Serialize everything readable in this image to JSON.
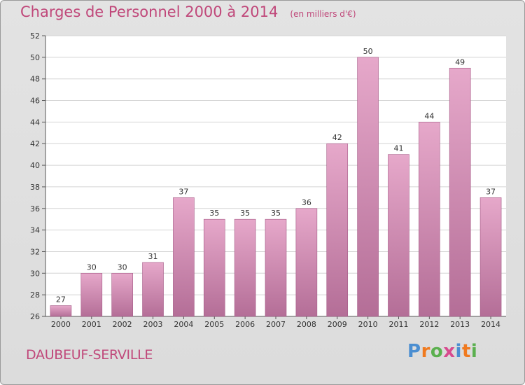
{
  "header": {
    "title": "Charges de Personnel 2000 à 2014",
    "subtitle": "(en milliers d'€)"
  },
  "footer": {
    "commune": "DAUBEUF-SERVILLE",
    "logo_text": "Proxiti"
  },
  "colors": {
    "title": "#c0487a",
    "bar_top": "#e6a8ca",
    "bar_bottom": "#b46e97",
    "plot_bg": "#ffffff",
    "grid": "#d4d4d4",
    "logo": [
      "#4b8ed1",
      "#f07a1f",
      "#5bb04f",
      "#d74a8e",
      "#4b8ed1",
      "#f07a1f",
      "#5bb04f"
    ]
  },
  "chart_data": {
    "type": "bar",
    "title": "Charges de Personnel 2000 à 2014",
    "subtitle": "(en milliers d'€)",
    "categories": [
      "2000",
      "2001",
      "2002",
      "2003",
      "2004",
      "2005",
      "2006",
      "2007",
      "2008",
      "2009",
      "2010",
      "2011",
      "2012",
      "2013",
      "2014"
    ],
    "values": [
      27,
      30,
      30,
      31,
      37,
      35,
      35,
      35,
      36,
      42,
      50,
      41,
      44,
      49,
      37
    ],
    "ylim": [
      26,
      52
    ],
    "yticks": [
      26,
      28,
      30,
      32,
      34,
      36,
      38,
      40,
      42,
      44,
      46,
      48,
      50,
      52
    ],
    "grid": true,
    "data_labels": true
  }
}
